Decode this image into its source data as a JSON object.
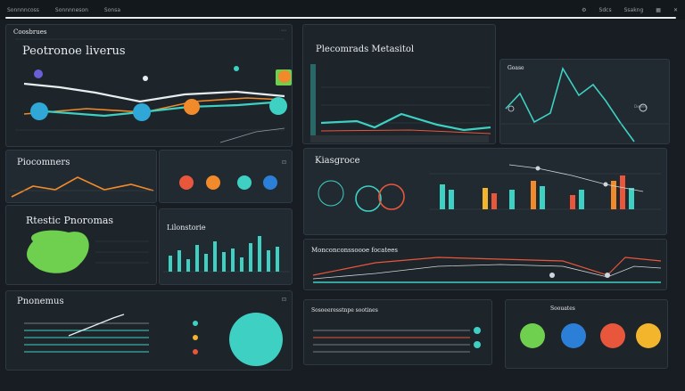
{
  "topbar": {
    "tabs": [
      "Sonnnncoss",
      "Sonnnneson",
      "Sonsa"
    ],
    "right_items": [
      "Sdcs",
      "Ssakng"
    ]
  },
  "panels": {
    "p1": {
      "header": "Coosbrues",
      "title": "Peotronoe liverus"
    },
    "p2": {
      "title": "Plecomrads Metasitol"
    },
    "p3": {
      "title": "Goase",
      "annotation": "Deeles"
    },
    "p4": {
      "title": "Piocomners"
    },
    "p5": {
      "title": "Kiasgroce"
    },
    "p6": {
      "title": "Rtestic Pnoromas"
    },
    "p7": {
      "title": "Lilonstorie"
    },
    "p8": {
      "title": "Monconconssoooe focatees"
    },
    "p9": {
      "title": "Pnonemus"
    },
    "p10": {
      "title": "Sosoeeresstnpe sootines"
    },
    "p11": {
      "title": "Soouates"
    }
  },
  "colors": {
    "teal": "#3ed0c3",
    "orange": "#f08a2a",
    "red": "#e8573c",
    "green": "#6fcf4e",
    "blue": "#2b7fd6",
    "yellow": "#f2b52c"
  }
}
